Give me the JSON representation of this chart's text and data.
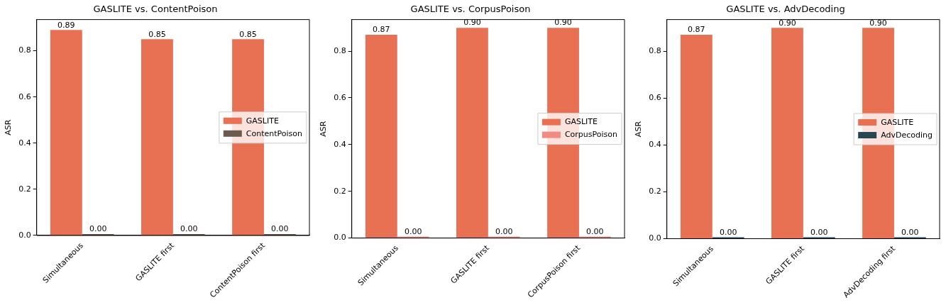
{
  "chart_data": [
    {
      "type": "bar",
      "title": "GASLITE vs. ContentPoison",
      "ylabel": "ASR",
      "categories": [
        "Simultaneous",
        "GASLITE first",
        "ContentPoison first"
      ],
      "ylim": [
        0,
        0.935
      ],
      "yticks": [
        {
          "value": 0,
          "label": "0.0"
        },
        {
          "value": 0.2,
          "label": "0.2"
        },
        {
          "value": 0.4,
          "label": "0.4"
        },
        {
          "value": 0.6,
          "label": "0.6"
        },
        {
          "value": 0.8,
          "label": "0.8"
        }
      ],
      "legend": "right",
      "grid": false,
      "series": [
        {
          "name": "GASLITE",
          "color": "#e87154",
          "values": [
            0.89,
            0.85,
            0.85
          ],
          "value_labels": [
            "0.89",
            "0.85",
            "0.85"
          ]
        },
        {
          "name": "ContentPoison",
          "color": "#6d5a4f",
          "values": [
            0,
            0,
            0
          ],
          "value_labels": [
            "0.00",
            "0.00",
            "0.00"
          ]
        }
      ]
    },
    {
      "type": "bar",
      "title": "GASLITE vs. CorpusPoison",
      "ylabel": "ASR",
      "categories": [
        "Simultaneous",
        "GASLITE first",
        "CorpusPoison first"
      ],
      "ylim": [
        0,
        0.935
      ],
      "yticks": [
        {
          "value": 0,
          "label": "0.0"
        },
        {
          "value": 0.2,
          "label": "0.2"
        },
        {
          "value": 0.4,
          "label": "0.4"
        },
        {
          "value": 0.6,
          "label": "0.6"
        },
        {
          "value": 0.8,
          "label": "0.8"
        }
      ],
      "legend": "right",
      "grid": false,
      "series": [
        {
          "name": "GASLITE",
          "color": "#e87154",
          "values": [
            0.87,
            0.9,
            0.9
          ],
          "value_labels": [
            "0.87",
            "0.90",
            "0.90"
          ]
        },
        {
          "name": "CorpusPoison",
          "color": "#f28b82",
          "values": [
            0,
            0,
            0
          ],
          "value_labels": [
            "0.00",
            "0.00",
            "0.00"
          ]
        }
      ]
    },
    {
      "type": "bar",
      "title": "GASLITE vs. AdvDecoding",
      "ylabel": "ASR",
      "categories": [
        "Simultaneous",
        "GASLITE first",
        "AdvDecoding first"
      ],
      "ylim": [
        0,
        0.935
      ],
      "yticks": [
        {
          "value": 0,
          "label": "0.0"
        },
        {
          "value": 0.2,
          "label": "0.2"
        },
        {
          "value": 0.4,
          "label": "0.4"
        },
        {
          "value": 0.6,
          "label": "0.6"
        },
        {
          "value": 0.8,
          "label": "0.8"
        }
      ],
      "legend": "right",
      "grid": false,
      "series": [
        {
          "name": "GASLITE",
          "color": "#e87154",
          "values": [
            0.87,
            0.9,
            0.9
          ],
          "value_labels": [
            "0.87",
            "0.90",
            "0.90"
          ]
        },
        {
          "name": "AdvDecoding",
          "color": "#264653",
          "values": [
            0,
            0,
            0
          ],
          "value_labels": [
            "0.00",
            "0.00",
            "0.00"
          ]
        }
      ]
    }
  ]
}
